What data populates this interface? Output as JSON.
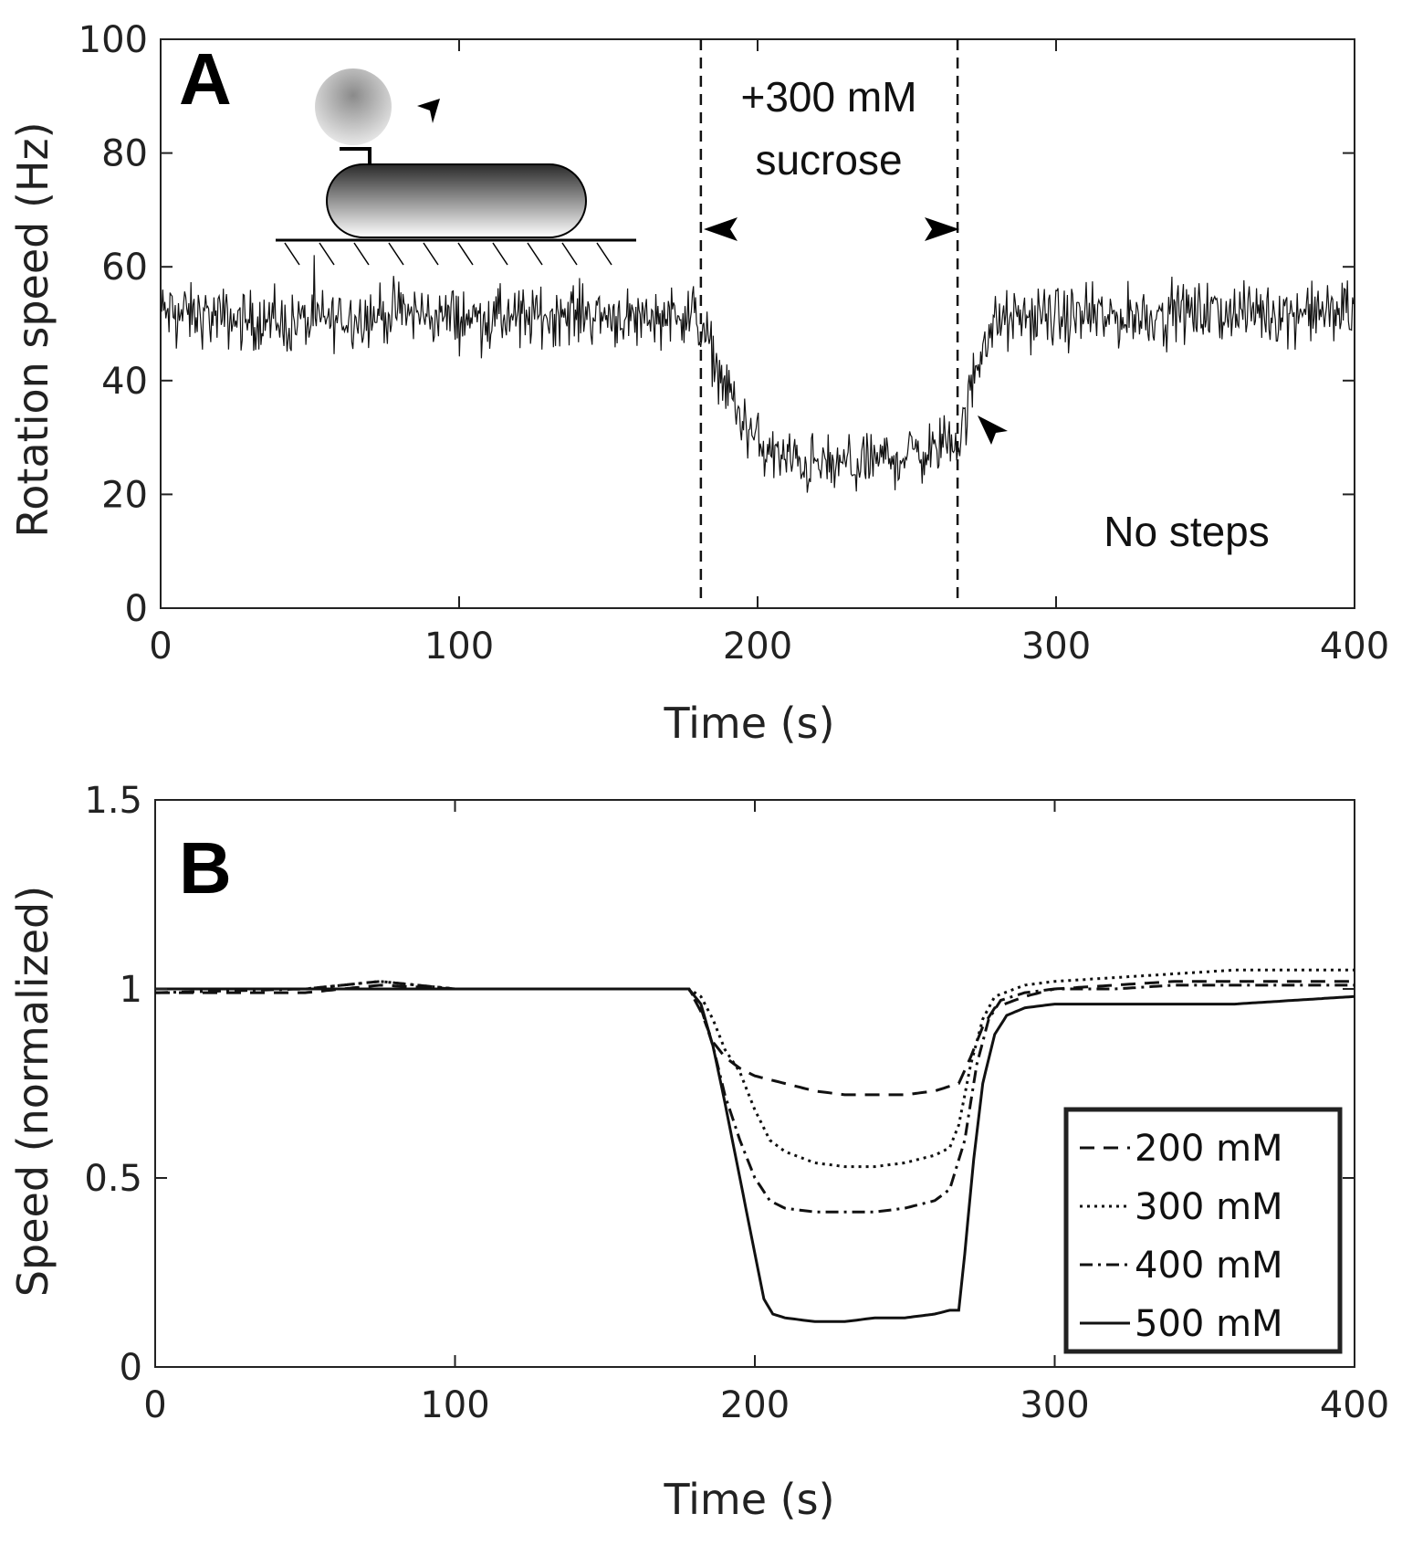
{
  "chart_data": [
    {
      "panel": "A",
      "type": "line",
      "xlabel": "Time (s)",
      "ylabel": "Rotation speed (Hz)",
      "xlim": [
        0,
        400
      ],
      "ylim": [
        0,
        100
      ],
      "xticks": [
        0,
        100,
        200,
        300,
        400
      ],
      "yticks": [
        0,
        20,
        40,
        60,
        80,
        100
      ],
      "grid": false,
      "annotation_sucrose": "+300 mM",
      "annotation_sucrose_line2": "sucrose",
      "annotation_steps": "No steps",
      "vlines": [
        181,
        267
      ],
      "series": [
        {
          "x": [
            0,
            20,
            40,
            60,
            80,
            100,
            120,
            140,
            160,
            175,
            180,
            183,
            186,
            190,
            195,
            200,
            205,
            210,
            220,
            230,
            240,
            250,
            260,
            266,
            268,
            270,
            273,
            276,
            280,
            290,
            300,
            320,
            340,
            360,
            380,
            400
          ],
          "y": [
            52,
            51,
            50,
            51,
            52,
            51,
            51,
            52,
            51,
            52,
            51,
            47,
            44,
            38,
            33,
            29,
            27,
            26,
            25,
            25,
            26,
            27,
            28,
            29,
            30,
            34,
            42,
            48,
            50,
            51,
            51,
            51,
            52,
            52,
            52,
            52
          ],
          "noise_amplitude_hz": 4
        }
      ]
    },
    {
      "panel": "B",
      "type": "line",
      "xlabel": "Time (s)",
      "ylabel": "Speed (normalized)",
      "xlim": [
        0,
        400
      ],
      "ylim": [
        0,
        1.5
      ],
      "xticks": [
        0,
        100,
        200,
        300,
        400
      ],
      "yticks": [
        0,
        0.5,
        1,
        1.5
      ],
      "ytick_labels": [
        "0",
        "0.5",
        "1",
        "1.5"
      ],
      "grid": false,
      "legend_position": "lower-right",
      "series": [
        {
          "name": "200 mM",
          "dash": "dashed",
          "x": [
            0,
            50,
            75,
            100,
            150,
            178,
            182,
            186,
            190,
            195,
            200,
            210,
            220,
            230,
            240,
            250,
            260,
            268,
            272,
            276,
            280,
            290,
            300,
            320,
            340,
            360,
            380,
            400
          ],
          "y": [
            0.99,
            0.99,
            1.01,
            1.0,
            1.0,
            1.0,
            0.94,
            0.86,
            0.82,
            0.79,
            0.77,
            0.75,
            0.73,
            0.72,
            0.72,
            0.72,
            0.73,
            0.75,
            0.82,
            0.9,
            0.95,
            0.98,
            1.0,
            1.01,
            1.02,
            1.02,
            1.02,
            1.02
          ]
        },
        {
          "name": "300 mM",
          "dash": "dotted",
          "x": [
            0,
            50,
            75,
            100,
            150,
            178,
            182,
            186,
            190,
            195,
            200,
            205,
            210,
            220,
            230,
            240,
            250,
            260,
            265,
            268,
            272,
            276,
            280,
            290,
            300,
            320,
            340,
            360,
            380,
            400
          ],
          "y": [
            1.0,
            1.0,
            1.02,
            1.0,
            1.0,
            1.0,
            0.98,
            0.92,
            0.84,
            0.78,
            0.68,
            0.6,
            0.57,
            0.54,
            0.53,
            0.53,
            0.54,
            0.56,
            0.58,
            0.64,
            0.8,
            0.92,
            0.98,
            1.01,
            1.02,
            1.03,
            1.04,
            1.05,
            1.05,
            1.05
          ]
        },
        {
          "name": "400 mM",
          "dash": "dashdot",
          "x": [
            0,
            50,
            75,
            100,
            150,
            178,
            182,
            186,
            190,
            195,
            200,
            205,
            210,
            220,
            230,
            240,
            250,
            260,
            265,
            270,
            274,
            278,
            282,
            290,
            300,
            320,
            340,
            360,
            380,
            400
          ],
          "y": [
            0.99,
            1.0,
            1.02,
            1.0,
            1.0,
            1.0,
            0.95,
            0.85,
            0.72,
            0.6,
            0.5,
            0.44,
            0.42,
            0.41,
            0.41,
            0.41,
            0.42,
            0.44,
            0.47,
            0.6,
            0.8,
            0.92,
            0.97,
            0.99,
            1.0,
            1.0,
            1.01,
            1.01,
            1.01,
            1.01
          ]
        },
        {
          "name": "500 mM",
          "dash": "solid",
          "x": [
            0,
            50,
            75,
            100,
            150,
            178,
            182,
            186,
            190,
            195,
            200,
            203,
            206,
            210,
            220,
            230,
            240,
            250,
            260,
            265,
            268,
            270,
            273,
            276,
            280,
            284,
            290,
            300,
            320,
            340,
            360,
            380,
            400
          ],
          "y": [
            1.0,
            1.0,
            1.0,
            1.0,
            1.0,
            1.0,
            0.96,
            0.85,
            0.7,
            0.5,
            0.3,
            0.18,
            0.14,
            0.13,
            0.12,
            0.12,
            0.13,
            0.13,
            0.14,
            0.15,
            0.15,
            0.3,
            0.55,
            0.75,
            0.88,
            0.93,
            0.95,
            0.96,
            0.96,
            0.96,
            0.96,
            0.97,
            0.98
          ]
        }
      ]
    }
  ],
  "panel_labels": [
    "A",
    "B"
  ]
}
